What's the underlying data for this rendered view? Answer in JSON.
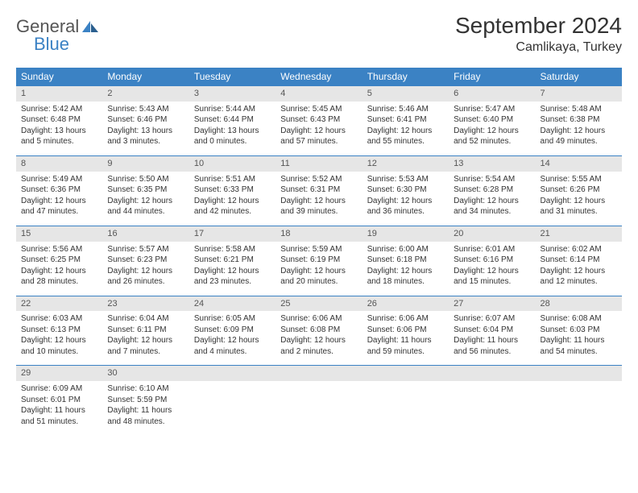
{
  "logo": {
    "word1": "General",
    "word2": "Blue"
  },
  "title": "September 2024",
  "location": "Camlikaya, Turkey",
  "colors": {
    "header_bg": "#3b82c4",
    "header_text": "#ffffff",
    "daynum_bg": "#e6e6e6",
    "row_border": "#3b82c4",
    "body_text": "#333333",
    "page_bg": "#ffffff"
  },
  "fonts": {
    "month_title_size": 28,
    "location_size": 16,
    "dayheader_size": 12,
    "daynum_size": 11,
    "body_size": 10
  },
  "day_headers": [
    "Sunday",
    "Monday",
    "Tuesday",
    "Wednesday",
    "Thursday",
    "Friday",
    "Saturday"
  ],
  "weeks": [
    [
      {
        "num": "1",
        "sunrise": "Sunrise: 5:42 AM",
        "sunset": "Sunset: 6:48 PM",
        "daylight": "Daylight: 13 hours and 5 minutes."
      },
      {
        "num": "2",
        "sunrise": "Sunrise: 5:43 AM",
        "sunset": "Sunset: 6:46 PM",
        "daylight": "Daylight: 13 hours and 3 minutes."
      },
      {
        "num": "3",
        "sunrise": "Sunrise: 5:44 AM",
        "sunset": "Sunset: 6:44 PM",
        "daylight": "Daylight: 13 hours and 0 minutes."
      },
      {
        "num": "4",
        "sunrise": "Sunrise: 5:45 AM",
        "sunset": "Sunset: 6:43 PM",
        "daylight": "Daylight: 12 hours and 57 minutes."
      },
      {
        "num": "5",
        "sunrise": "Sunrise: 5:46 AM",
        "sunset": "Sunset: 6:41 PM",
        "daylight": "Daylight: 12 hours and 55 minutes."
      },
      {
        "num": "6",
        "sunrise": "Sunrise: 5:47 AM",
        "sunset": "Sunset: 6:40 PM",
        "daylight": "Daylight: 12 hours and 52 minutes."
      },
      {
        "num": "7",
        "sunrise": "Sunrise: 5:48 AM",
        "sunset": "Sunset: 6:38 PM",
        "daylight": "Daylight: 12 hours and 49 minutes."
      }
    ],
    [
      {
        "num": "8",
        "sunrise": "Sunrise: 5:49 AM",
        "sunset": "Sunset: 6:36 PM",
        "daylight": "Daylight: 12 hours and 47 minutes."
      },
      {
        "num": "9",
        "sunrise": "Sunrise: 5:50 AM",
        "sunset": "Sunset: 6:35 PM",
        "daylight": "Daylight: 12 hours and 44 minutes."
      },
      {
        "num": "10",
        "sunrise": "Sunrise: 5:51 AM",
        "sunset": "Sunset: 6:33 PM",
        "daylight": "Daylight: 12 hours and 42 minutes."
      },
      {
        "num": "11",
        "sunrise": "Sunrise: 5:52 AM",
        "sunset": "Sunset: 6:31 PM",
        "daylight": "Daylight: 12 hours and 39 minutes."
      },
      {
        "num": "12",
        "sunrise": "Sunrise: 5:53 AM",
        "sunset": "Sunset: 6:30 PM",
        "daylight": "Daylight: 12 hours and 36 minutes."
      },
      {
        "num": "13",
        "sunrise": "Sunrise: 5:54 AM",
        "sunset": "Sunset: 6:28 PM",
        "daylight": "Daylight: 12 hours and 34 minutes."
      },
      {
        "num": "14",
        "sunrise": "Sunrise: 5:55 AM",
        "sunset": "Sunset: 6:26 PM",
        "daylight": "Daylight: 12 hours and 31 minutes."
      }
    ],
    [
      {
        "num": "15",
        "sunrise": "Sunrise: 5:56 AM",
        "sunset": "Sunset: 6:25 PM",
        "daylight": "Daylight: 12 hours and 28 minutes."
      },
      {
        "num": "16",
        "sunrise": "Sunrise: 5:57 AM",
        "sunset": "Sunset: 6:23 PM",
        "daylight": "Daylight: 12 hours and 26 minutes."
      },
      {
        "num": "17",
        "sunrise": "Sunrise: 5:58 AM",
        "sunset": "Sunset: 6:21 PM",
        "daylight": "Daylight: 12 hours and 23 minutes."
      },
      {
        "num": "18",
        "sunrise": "Sunrise: 5:59 AM",
        "sunset": "Sunset: 6:19 PM",
        "daylight": "Daylight: 12 hours and 20 minutes."
      },
      {
        "num": "19",
        "sunrise": "Sunrise: 6:00 AM",
        "sunset": "Sunset: 6:18 PM",
        "daylight": "Daylight: 12 hours and 18 minutes."
      },
      {
        "num": "20",
        "sunrise": "Sunrise: 6:01 AM",
        "sunset": "Sunset: 6:16 PM",
        "daylight": "Daylight: 12 hours and 15 minutes."
      },
      {
        "num": "21",
        "sunrise": "Sunrise: 6:02 AM",
        "sunset": "Sunset: 6:14 PM",
        "daylight": "Daylight: 12 hours and 12 minutes."
      }
    ],
    [
      {
        "num": "22",
        "sunrise": "Sunrise: 6:03 AM",
        "sunset": "Sunset: 6:13 PM",
        "daylight": "Daylight: 12 hours and 10 minutes."
      },
      {
        "num": "23",
        "sunrise": "Sunrise: 6:04 AM",
        "sunset": "Sunset: 6:11 PM",
        "daylight": "Daylight: 12 hours and 7 minutes."
      },
      {
        "num": "24",
        "sunrise": "Sunrise: 6:05 AM",
        "sunset": "Sunset: 6:09 PM",
        "daylight": "Daylight: 12 hours and 4 minutes."
      },
      {
        "num": "25",
        "sunrise": "Sunrise: 6:06 AM",
        "sunset": "Sunset: 6:08 PM",
        "daylight": "Daylight: 12 hours and 2 minutes."
      },
      {
        "num": "26",
        "sunrise": "Sunrise: 6:06 AM",
        "sunset": "Sunset: 6:06 PM",
        "daylight": "Daylight: 11 hours and 59 minutes."
      },
      {
        "num": "27",
        "sunrise": "Sunrise: 6:07 AM",
        "sunset": "Sunset: 6:04 PM",
        "daylight": "Daylight: 11 hours and 56 minutes."
      },
      {
        "num": "28",
        "sunrise": "Sunrise: 6:08 AM",
        "sunset": "Sunset: 6:03 PM",
        "daylight": "Daylight: 11 hours and 54 minutes."
      }
    ],
    [
      {
        "num": "29",
        "sunrise": "Sunrise: 6:09 AM",
        "sunset": "Sunset: 6:01 PM",
        "daylight": "Daylight: 11 hours and 51 minutes."
      },
      {
        "num": "30",
        "sunrise": "Sunrise: 6:10 AM",
        "sunset": "Sunset: 5:59 PM",
        "daylight": "Daylight: 11 hours and 48 minutes."
      },
      null,
      null,
      null,
      null,
      null
    ]
  ]
}
